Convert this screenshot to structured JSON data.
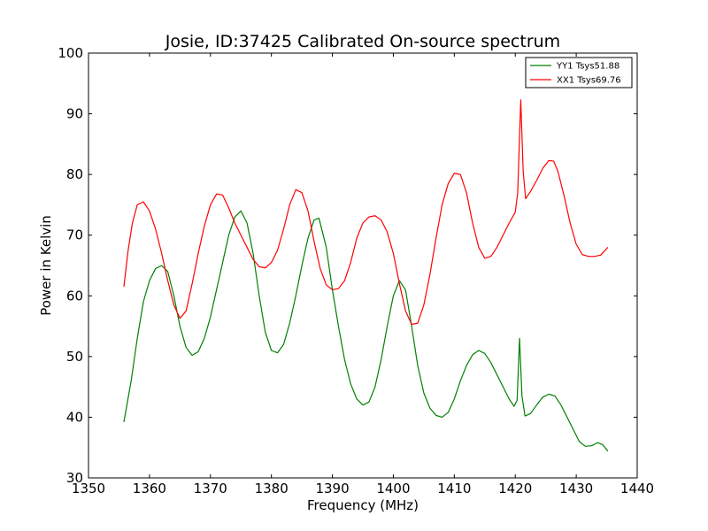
{
  "chart_data": {
    "type": "line",
    "title": "Josie, ID:37425 Calibrated On-source spectrum",
    "xlabel": "Frequency (MHz)",
    "ylabel": "Power in Kelvin",
    "xlim": [
      1350,
      1440
    ],
    "ylim": [
      30,
      100
    ],
    "xticks": [
      "1350",
      "1360",
      "1370",
      "1380",
      "1390",
      "1400",
      "1410",
      "1420",
      "1430",
      "1440"
    ],
    "yticks": [
      "30",
      "40",
      "50",
      "60",
      "70",
      "80",
      "90",
      "100"
    ],
    "grid": false,
    "legend_position": "top-right",
    "series": [
      {
        "name": "YY1 Tsys51.88",
        "color": "#008000",
        "points": [
          [
            1355.8,
            39.2
          ],
          [
            1357.0,
            46.0
          ],
          [
            1358.0,
            53.0
          ],
          [
            1359.0,
            59.0
          ],
          [
            1360.0,
            62.5
          ],
          [
            1361.0,
            64.5
          ],
          [
            1362.0,
            65.0
          ],
          [
            1363.0,
            64.0
          ],
          [
            1364.0,
            60.0
          ],
          [
            1365.0,
            55.0
          ],
          [
            1366.0,
            51.5
          ],
          [
            1367.0,
            50.2
          ],
          [
            1368.0,
            50.8
          ],
          [
            1369.0,
            53.0
          ],
          [
            1370.0,
            56.5
          ],
          [
            1371.0,
            61.0
          ],
          [
            1372.0,
            65.5
          ],
          [
            1373.0,
            70.0
          ],
          [
            1374.0,
            73.0
          ],
          [
            1375.0,
            74.0
          ],
          [
            1376.0,
            72.0
          ],
          [
            1377.0,
            67.0
          ],
          [
            1378.0,
            60.0
          ],
          [
            1379.0,
            54.0
          ],
          [
            1380.0,
            51.0
          ],
          [
            1381.0,
            50.6
          ],
          [
            1382.0,
            52.0
          ],
          [
            1383.0,
            55.5
          ],
          [
            1384.0,
            60.0
          ],
          [
            1385.0,
            65.0
          ],
          [
            1386.0,
            69.5
          ],
          [
            1387.0,
            72.5
          ],
          [
            1387.8,
            72.8
          ],
          [
            1389.0,
            68.0
          ],
          [
            1390.0,
            61.0
          ],
          [
            1391.0,
            55.0
          ],
          [
            1392.0,
            49.5
          ],
          [
            1393.0,
            45.5
          ],
          [
            1394.0,
            43.0
          ],
          [
            1395.0,
            42.0
          ],
          [
            1396.0,
            42.5
          ],
          [
            1397.0,
            45.0
          ],
          [
            1398.0,
            49.5
          ],
          [
            1399.0,
            55.0
          ],
          [
            1400.0,
            60.0
          ],
          [
            1401.0,
            62.5
          ],
          [
            1402.0,
            61.0
          ],
          [
            1403.0,
            55.0
          ],
          [
            1404.0,
            48.5
          ],
          [
            1405.0,
            44.0
          ],
          [
            1406.0,
            41.5
          ],
          [
            1407.0,
            40.3
          ],
          [
            1408.0,
            40.0
          ],
          [
            1409.0,
            40.8
          ],
          [
            1410.0,
            43.0
          ],
          [
            1411.0,
            46.0
          ],
          [
            1412.0,
            48.5
          ],
          [
            1413.0,
            50.3
          ],
          [
            1414.0,
            51.0
          ],
          [
            1415.0,
            50.5
          ],
          [
            1416.0,
            49.0
          ],
          [
            1417.0,
            47.0
          ],
          [
            1418.0,
            45.0
          ],
          [
            1419.0,
            43.0
          ],
          [
            1419.8,
            41.8
          ],
          [
            1420.3,
            42.8
          ],
          [
            1420.7,
            53.0
          ],
          [
            1421.1,
            43.5
          ],
          [
            1421.6,
            40.2
          ],
          [
            1422.5,
            40.6
          ],
          [
            1423.5,
            42.0
          ],
          [
            1424.5,
            43.3
          ],
          [
            1425.5,
            43.8
          ],
          [
            1426.5,
            43.5
          ],
          [
            1427.5,
            42.0
          ],
          [
            1428.5,
            40.0
          ],
          [
            1429.5,
            38.0
          ],
          [
            1430.5,
            36.0
          ],
          [
            1431.5,
            35.2
          ],
          [
            1432.5,
            35.3
          ],
          [
            1433.5,
            35.8
          ],
          [
            1434.3,
            35.5
          ],
          [
            1435.2,
            34.4
          ]
        ]
      },
      {
        "name": "XX1 Tsys69.76",
        "color": "#ff0000",
        "points": [
          [
            1355.8,
            61.5
          ],
          [
            1356.5,
            67.5
          ],
          [
            1357.2,
            72.0
          ],
          [
            1358.0,
            75.0
          ],
          [
            1359.0,
            75.5
          ],
          [
            1360.0,
            74.0
          ],
          [
            1361.0,
            71.0
          ],
          [
            1362.0,
            67.0
          ],
          [
            1363.0,
            62.5
          ],
          [
            1364.0,
            58.5
          ],
          [
            1365.0,
            56.3
          ],
          [
            1366.0,
            57.5
          ],
          [
            1367.0,
            62.0
          ],
          [
            1368.0,
            67.0
          ],
          [
            1369.0,
            71.5
          ],
          [
            1370.0,
            75.0
          ],
          [
            1371.0,
            76.8
          ],
          [
            1372.0,
            76.6
          ],
          [
            1373.0,
            74.5
          ],
          [
            1374.0,
            72.0
          ],
          [
            1375.0,
            70.0
          ],
          [
            1376.0,
            68.0
          ],
          [
            1377.0,
            66.0
          ],
          [
            1378.0,
            64.8
          ],
          [
            1379.0,
            64.6
          ],
          [
            1380.0,
            65.5
          ],
          [
            1381.0,
            67.5
          ],
          [
            1382.0,
            71.0
          ],
          [
            1383.0,
            75.0
          ],
          [
            1384.0,
            77.5
          ],
          [
            1385.0,
            77.0
          ],
          [
            1386.0,
            74.0
          ],
          [
            1387.0,
            69.0
          ],
          [
            1388.0,
            64.5
          ],
          [
            1389.0,
            61.8
          ],
          [
            1390.0,
            61.0
          ],
          [
            1391.0,
            61.2
          ],
          [
            1392.0,
            62.5
          ],
          [
            1393.0,
            65.5
          ],
          [
            1394.0,
            69.5
          ],
          [
            1395.0,
            72.0
          ],
          [
            1396.0,
            73.0
          ],
          [
            1397.0,
            73.2
          ],
          [
            1398.0,
            72.5
          ],
          [
            1399.0,
            70.5
          ],
          [
            1400.0,
            67.0
          ],
          [
            1401.0,
            62.0
          ],
          [
            1402.0,
            57.5
          ],
          [
            1403.0,
            55.3
          ],
          [
            1404.0,
            55.5
          ],
          [
            1405.0,
            58.5
          ],
          [
            1406.0,
            63.5
          ],
          [
            1407.0,
            69.5
          ],
          [
            1408.0,
            75.0
          ],
          [
            1409.0,
            78.5
          ],
          [
            1410.0,
            80.2
          ],
          [
            1411.0,
            80.0
          ],
          [
            1412.0,
            77.0
          ],
          [
            1413.0,
            72.0
          ],
          [
            1414.0,
            68.0
          ],
          [
            1415.0,
            66.2
          ],
          [
            1416.0,
            66.5
          ],
          [
            1417.0,
            68.0
          ],
          [
            1418.0,
            70.0
          ],
          [
            1419.0,
            72.0
          ],
          [
            1420.0,
            73.8
          ],
          [
            1420.4,
            77.0
          ],
          [
            1420.9,
            92.3
          ],
          [
            1421.3,
            80.5
          ],
          [
            1421.7,
            76.0
          ],
          [
            1422.5,
            77.2
          ],
          [
            1423.5,
            79.0
          ],
          [
            1424.5,
            81.0
          ],
          [
            1425.5,
            82.3
          ],
          [
            1426.3,
            82.2
          ],
          [
            1427.0,
            80.5
          ],
          [
            1428.0,
            76.5
          ],
          [
            1429.0,
            72.0
          ],
          [
            1430.0,
            68.5
          ],
          [
            1431.0,
            66.8
          ],
          [
            1432.0,
            66.5
          ],
          [
            1433.0,
            66.5
          ],
          [
            1434.0,
            66.7
          ],
          [
            1435.2,
            68.0
          ]
        ]
      }
    ]
  }
}
